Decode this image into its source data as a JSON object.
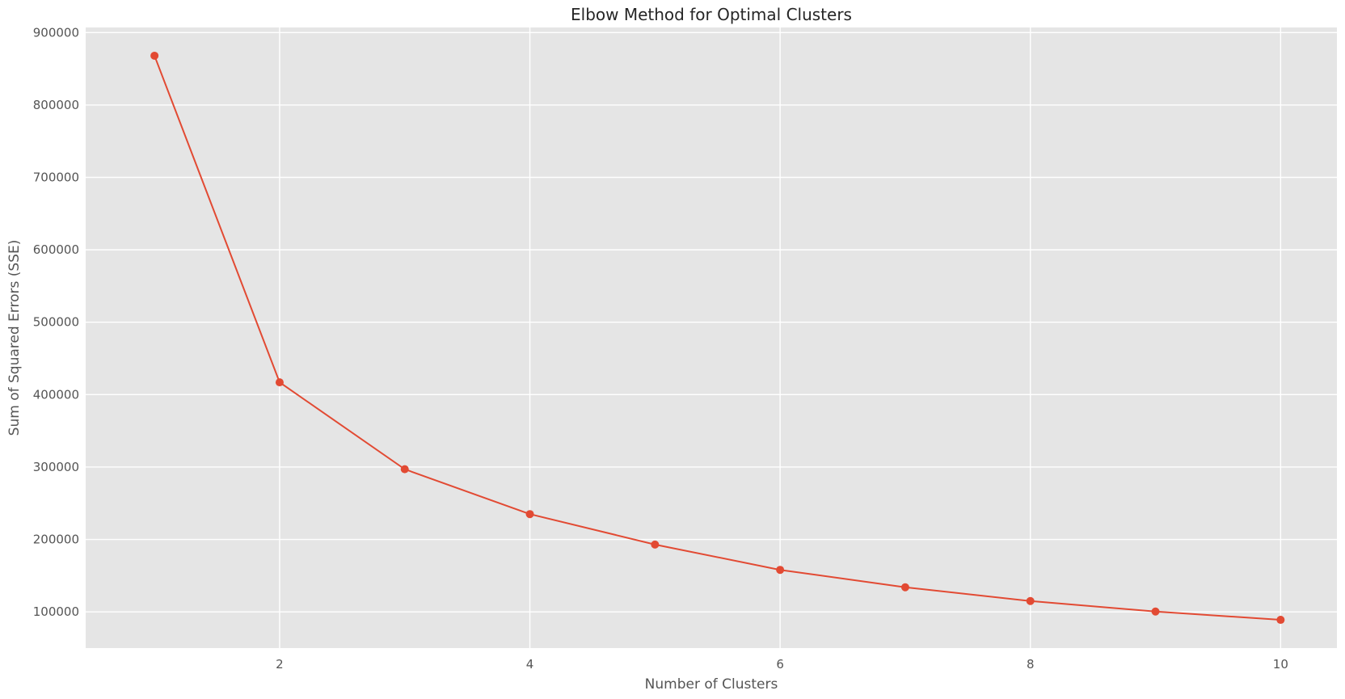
{
  "chart_data": {
    "type": "line",
    "title": "Elbow Method for Optimal Clusters",
    "xlabel": "Number of Clusters",
    "ylabel": "Sum of Squared Errors (SSE)",
    "x": [
      1,
      2,
      3,
      4,
      5,
      6,
      7,
      8,
      9,
      10
    ],
    "series": [
      {
        "values": [
          868000,
          417000,
          297000,
          235000,
          193000,
          158000,
          134000,
          115000,
          100500,
          89000
        ]
      }
    ],
    "xlim": [
      0.45,
      10.45
    ],
    "ylim": [
      50000,
      907000
    ],
    "xticks": [
      2,
      4,
      6,
      8,
      10
    ],
    "yticks": [
      100000,
      200000,
      300000,
      400000,
      500000,
      600000,
      700000,
      800000,
      900000
    ],
    "grid": true,
    "marker": "circle",
    "colors": {
      "line": "#E24A33",
      "background": "#E5E5E5",
      "grid": "#FFFFFF"
    }
  }
}
